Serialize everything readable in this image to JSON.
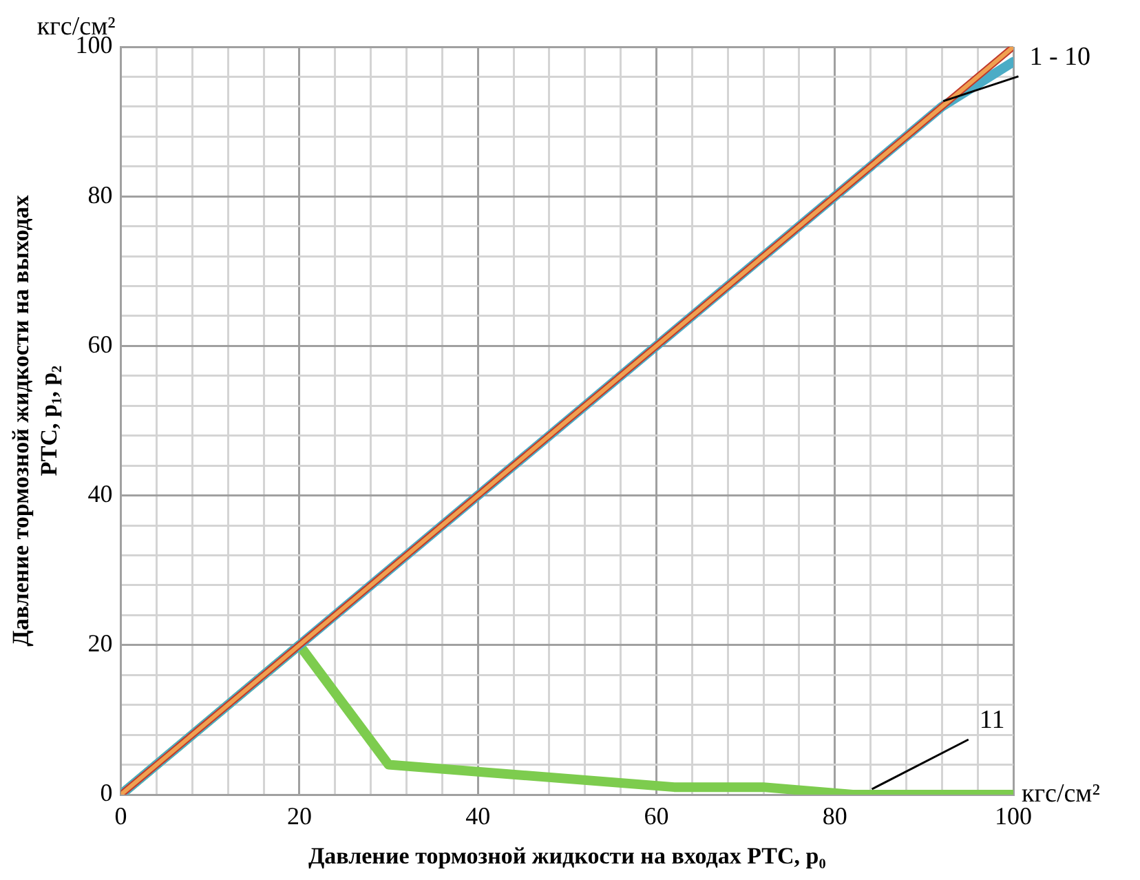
{
  "chart_data": {
    "type": "line",
    "xlabel": "Давление тормозной жидкости на входах РТС, p₀",
    "ylabel": "Давление тормозной жидкости на выходах\nРТС, p₁, p₂",
    "xlim": [
      0,
      100
    ],
    "ylim": [
      0,
      100
    ],
    "xticks": [
      0,
      {
        "value": 4,
        "label": null
      },
      {
        "value": 8,
        "label": null
      },
      {
        "value": 12,
        "label": null
      },
      {
        "value": 16,
        "label": null
      },
      20,
      {
        "value": 24,
        "label": null
      },
      {
        "value": 28,
        "label": null
      },
      {
        "value": 32,
        "label": null
      },
      {
        "value": 36,
        "label": null
      },
      40,
      {
        "value": 44,
        "label": null
      },
      {
        "value": 48,
        "label": null
      },
      {
        "value": 52,
        "label": null
      },
      {
        "value": 56,
        "label": null
      },
      60,
      {
        "value": 64,
        "label": null
      },
      {
        "value": 68,
        "label": null
      },
      {
        "value": 72,
        "label": null
      },
      {
        "value": 76,
        "label": null
      },
      80,
      {
        "value": 84,
        "label": null
      },
      {
        "value": 88,
        "label": null
      },
      {
        "value": 92,
        "label": null
      },
      {
        "value": 96,
        "label": null
      },
      100
    ],
    "yticks": [
      0,
      {
        "value": 4,
        "label": null
      },
      {
        "value": 8,
        "label": null
      },
      {
        "value": 12,
        "label": null
      },
      {
        "value": 16,
        "label": null
      },
      20,
      {
        "value": 24,
        "label": null
      },
      {
        "value": 28,
        "label": null
      },
      {
        "value": 32,
        "label": null
      },
      {
        "value": 36,
        "label": null
      },
      40,
      {
        "value": 44,
        "label": null
      },
      {
        "value": 48,
        "label": null
      },
      {
        "value": 52,
        "label": null
      },
      {
        "value": 56,
        "label": null
      },
      60,
      {
        "value": 64,
        "label": null
      },
      {
        "value": 68,
        "label": null
      },
      {
        "value": 72,
        "label": null
      },
      {
        "value": 76,
        "label": null
      },
      80,
      {
        "value": 84,
        "label": null
      },
      {
        "value": 88,
        "label": null
      },
      {
        "value": 92,
        "label": null
      },
      {
        "value": 96,
        "label": null
      },
      100
    ],
    "series": [
      {
        "color": "#f0a050",
        "x": [
          0,
          92,
          100
        ],
        "values": [
          0,
          92,
          100
        ]
      },
      {
        "color": "#c0392b",
        "x": [
          0,
          92,
          100
        ],
        "values": [
          0,
          92,
          100
        ]
      },
      {
        "color": "#4bacc6",
        "x": [
          0,
          92,
          100
        ],
        "values": [
          0,
          92,
          98
        ]
      },
      {
        "color": "#7dcc4e",
        "x": [
          0,
          20,
          30,
          62,
          72,
          82,
          100
        ],
        "values": [
          0,
          20,
          4,
          1,
          1,
          0,
          0
        ]
      }
    ],
    "annotations": [
      "кгс/см²",
      "кгс/см²",
      {
        "text": "1 - 10",
        "x": 92,
        "y": 92
      },
      {
        "text": "11",
        "x": 84,
        "y": 0
      }
    ],
    "grid": true,
    "legend": false,
    "marker": "none",
    "line_style": "solid"
  }
}
